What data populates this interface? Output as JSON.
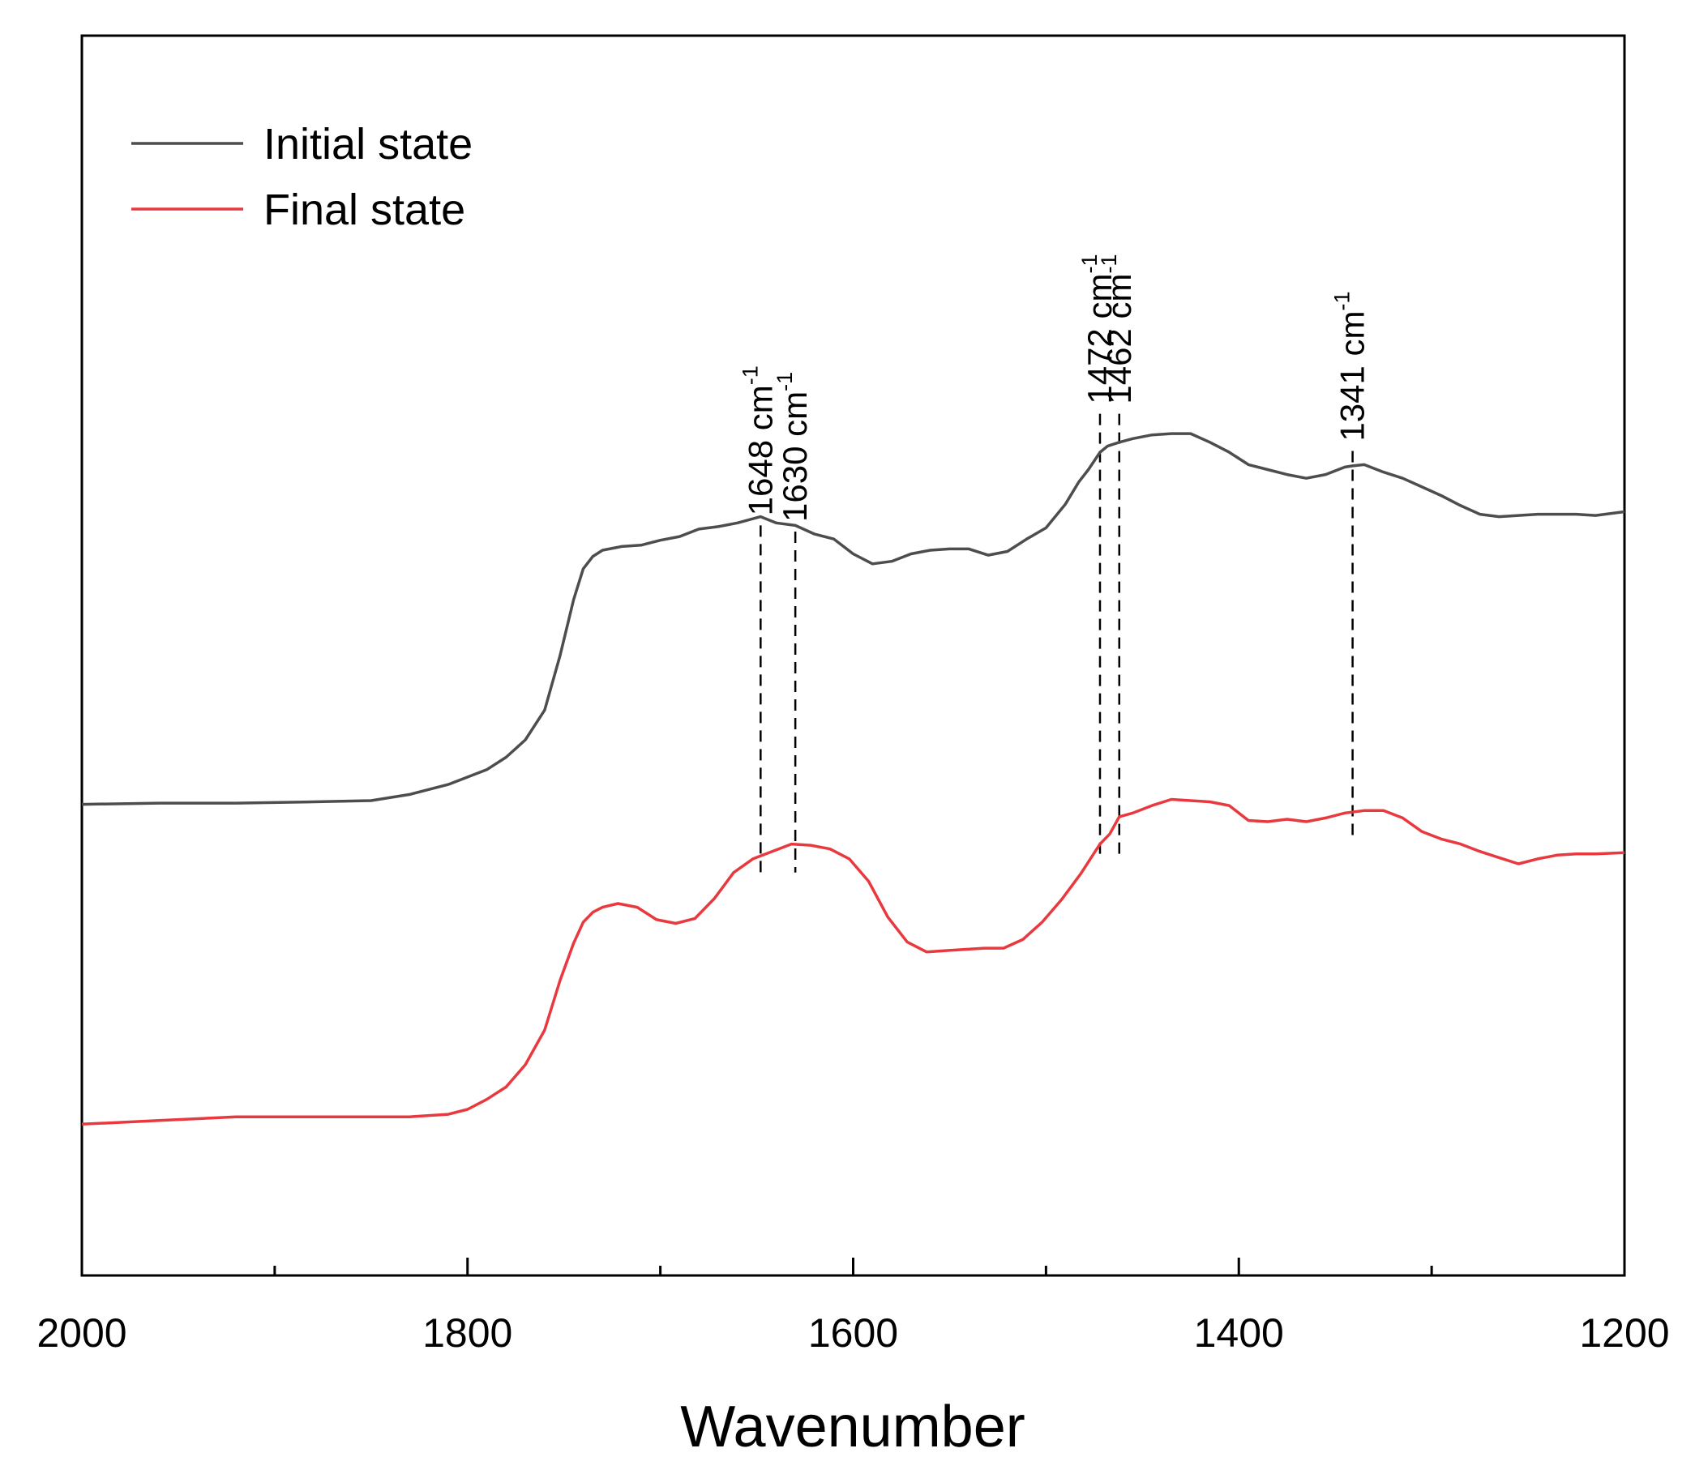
{
  "chart_data": {
    "type": "line",
    "title": "",
    "xlabel": "Wavenumber",
    "ylabel": "",
    "xlim": [
      2000,
      1200
    ],
    "x_reversed": true,
    "ylim": [
      0,
      1
    ],
    "y_ticks_shown": false,
    "grid": false,
    "xticks_major": [
      2000,
      1800,
      1600,
      1400,
      1200
    ],
    "xticks_major_labels": [
      "2000",
      "1800",
      "1600",
      "1400",
      "1200"
    ],
    "xticks_minor": [
      1900,
      1700,
      1500,
      1300
    ],
    "legend": {
      "position": "top-left"
    },
    "series": [
      {
        "name": "Initial state",
        "color": "#4d4d4d",
        "x": [
          2000,
          1960,
          1920,
          1880,
          1850,
          1830,
          1810,
          1790,
          1780,
          1770,
          1760,
          1752,
          1745,
          1740,
          1735,
          1730,
          1720,
          1710,
          1700,
          1690,
          1680,
          1670,
          1660,
          1648,
          1640,
          1630,
          1620,
          1610,
          1600,
          1590,
          1580,
          1570,
          1560,
          1550,
          1540,
          1530,
          1520,
          1510,
          1500,
          1490,
          1483,
          1478,
          1472,
          1468,
          1462,
          1455,
          1445,
          1435,
          1425,
          1415,
          1405,
          1395,
          1385,
          1375,
          1365,
          1355,
          1345,
          1341,
          1335,
          1325,
          1315,
          1305,
          1295,
          1285,
          1275,
          1265,
          1255,
          1245,
          1235,
          1225,
          1215,
          1200
        ],
        "y": [
          0.38,
          0.381,
          0.381,
          0.382,
          0.383,
          0.388,
          0.396,
          0.408,
          0.418,
          0.432,
          0.456,
          0.5,
          0.545,
          0.57,
          0.58,
          0.585,
          0.588,
          0.589,
          0.593,
          0.596,
          0.602,
          0.604,
          0.607,
          0.612,
          0.607,
          0.605,
          0.598,
          0.594,
          0.582,
          0.574,
          0.576,
          0.582,
          0.585,
          0.586,
          0.586,
          0.581,
          0.584,
          0.594,
          0.603,
          0.622,
          0.64,
          0.65,
          0.664,
          0.669,
          0.672,
          0.675,
          0.678,
          0.679,
          0.679,
          0.672,
          0.664,
          0.654,
          0.65,
          0.646,
          0.643,
          0.646,
          0.652,
          0.653,
          0.654,
          0.648,
          0.643,
          0.636,
          0.629,
          0.621,
          0.614,
          0.612,
          0.613,
          0.614,
          0.614,
          0.614,
          0.613,
          0.616
        ]
      },
      {
        "name": "Final state",
        "color": "#e8393e",
        "x": [
          2000,
          1960,
          1920,
          1880,
          1850,
          1830,
          1810,
          1800,
          1790,
          1780,
          1770,
          1760,
          1752,
          1745,
          1740,
          1735,
          1730,
          1722,
          1712,
          1702,
          1692,
          1682,
          1672,
          1662,
          1652,
          1642,
          1632,
          1622,
          1612,
          1602,
          1592,
          1582,
          1572,
          1562,
          1552,
          1542,
          1532,
          1522,
          1512,
          1502,
          1492,
          1482,
          1472,
          1467,
          1462,
          1455,
          1445,
          1435,
          1425,
          1415,
          1405,
          1395,
          1385,
          1375,
          1365,
          1355,
          1345,
          1335,
          1325,
          1315,
          1305,
          1295,
          1285,
          1275,
          1265,
          1255,
          1245,
          1235,
          1225,
          1215,
          1200
        ],
        "y": [
          0.122,
          0.125,
          0.128,
          0.128,
          0.128,
          0.128,
          0.13,
          0.134,
          0.142,
          0.152,
          0.17,
          0.198,
          0.238,
          0.268,
          0.285,
          0.293,
          0.297,
          0.3,
          0.297,
          0.287,
          0.284,
          0.288,
          0.304,
          0.325,
          0.336,
          0.342,
          0.348,
          0.347,
          0.344,
          0.336,
          0.318,
          0.289,
          0.269,
          0.261,
          0.262,
          0.263,
          0.264,
          0.264,
          0.271,
          0.285,
          0.303,
          0.324,
          0.348,
          0.356,
          0.37,
          0.373,
          0.379,
          0.384,
          0.383,
          0.382,
          0.379,
          0.367,
          0.366,
          0.368,
          0.366,
          0.369,
          0.373,
          0.375,
          0.375,
          0.369,
          0.358,
          0.352,
          0.348,
          0.342,
          0.337,
          0.332,
          0.336,
          0.339,
          0.34,
          0.34,
          0.341
        ]
      }
    ],
    "annotations": [
      {
        "x": 1648,
        "label": "1648 cm",
        "superscript": "-1",
        "y_top": 0.605,
        "y_bottom": 0.322
      },
      {
        "x": 1630,
        "label": "1630 cm",
        "superscript": "-1",
        "y_top": 0.6,
        "y_bottom": 0.325
      },
      {
        "x": 1472,
        "label": "1472 cm",
        "superscript": "-1",
        "y_top": 0.695,
        "y_bottom": 0.336
      },
      {
        "x": 1462,
        "label": "1462 cm",
        "superscript": "-1",
        "y_top": 0.695,
        "y_bottom": 0.336
      },
      {
        "x": 1341,
        "label": "1341 cm",
        "superscript": "-1",
        "y_top": 0.665,
        "y_bottom": 0.354
      }
    ]
  }
}
